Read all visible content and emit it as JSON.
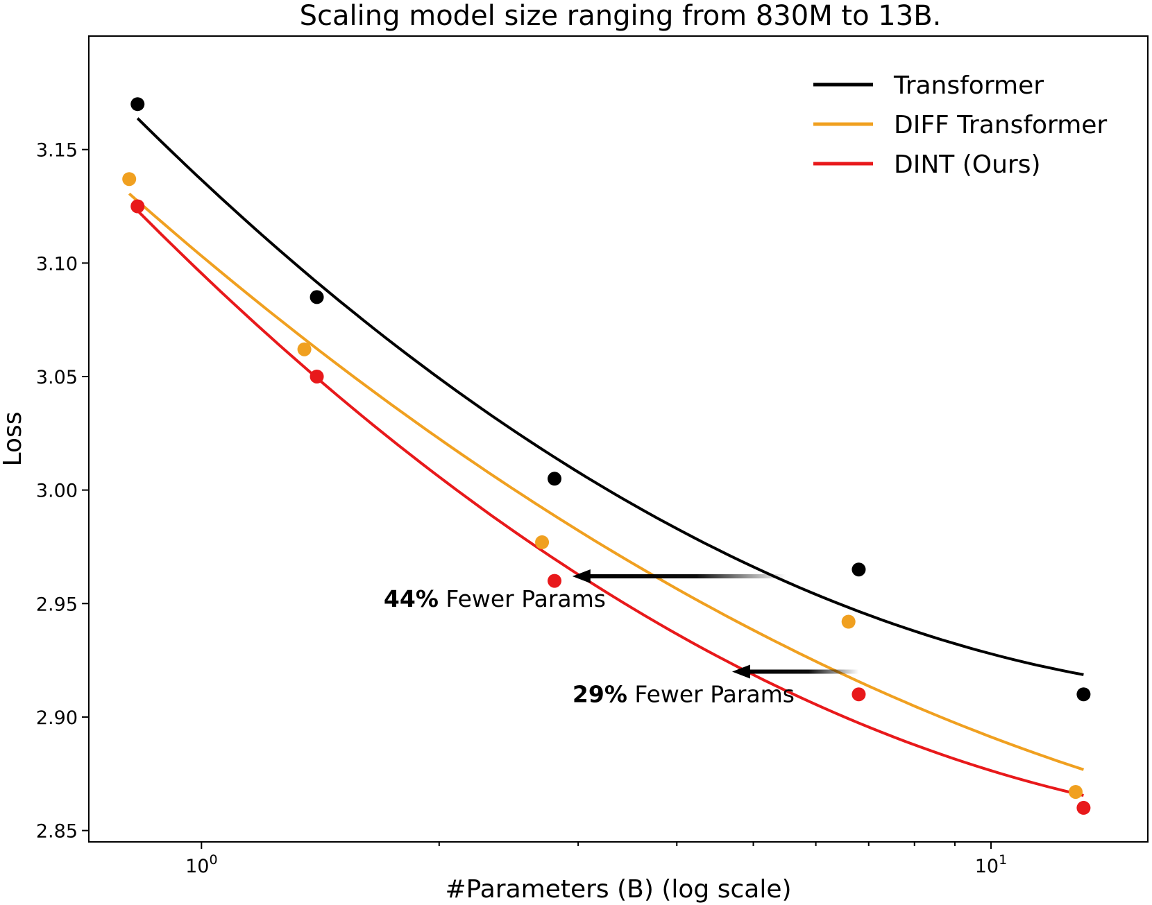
{
  "chart_data": {
    "type": "scatter",
    "title": "Scaling model size ranging from 830M to 13B.",
    "xlabel": "#Parameters (B) (log scale)",
    "ylabel": "Loss",
    "xscale": "log",
    "xlim": [
      0.72,
      15.8
    ],
    "ylim": [
      2.845,
      3.2
    ],
    "x_ticks": [
      {
        "value": 1,
        "base": "10",
        "exp": "0"
      },
      {
        "value": 10,
        "base": "10",
        "exp": "1"
      }
    ],
    "y_ticks": [
      {
        "value": 2.85,
        "label": "2.85"
      },
      {
        "value": 2.9,
        "label": "2.90"
      },
      {
        "value": 2.95,
        "label": "2.95"
      },
      {
        "value": 3.0,
        "label": "3.00"
      },
      {
        "value": 3.05,
        "label": "3.05"
      },
      {
        "value": 3.1,
        "label": "3.10"
      },
      {
        "value": 3.15,
        "label": "3.15"
      }
    ],
    "legend_position": "top-right",
    "series": [
      {
        "name": "Transformer",
        "color": "#000000",
        "points": [
          [
            0.83,
            3.17
          ],
          [
            1.4,
            3.085
          ],
          [
            2.8,
            3.005
          ],
          [
            6.8,
            2.965
          ],
          [
            13.1,
            2.91
          ]
        ],
        "fit": [
          [
            0.83,
            3.164
          ],
          [
            13.1,
            2.918
          ]
        ]
      },
      {
        "name": "DIFF Transformer",
        "color": "#f0a020",
        "points": [
          [
            0.81,
            3.137
          ],
          [
            1.35,
            3.062
          ],
          [
            2.7,
            2.977
          ],
          [
            6.6,
            2.942
          ],
          [
            12.8,
            2.867
          ]
        ],
        "fit": [
          [
            0.81,
            3.134
          ],
          [
            13.1,
            2.881
          ]
        ]
      },
      {
        "name": "DINT (Ours)",
        "color": "#e8191b",
        "points": [
          [
            0.83,
            3.125
          ],
          [
            1.4,
            3.05
          ],
          [
            2.8,
            2.96
          ],
          [
            6.8,
            2.91
          ],
          [
            13.1,
            2.86
          ]
        ],
        "fit": [
          [
            0.83,
            3.122
          ],
          [
            13.1,
            2.865
          ]
        ]
      }
    ],
    "annotations": [
      {
        "bold": "44%",
        "text": " Fewer Params",
        "arrow_from": [
          5.5,
          2.962
        ],
        "arrow_to": [
          2.95,
          2.962
        ]
      },
      {
        "bold": "29%",
        "text": " Fewer Params",
        "arrow_from": [
          6.8,
          2.92
        ],
        "arrow_to": [
          4.7,
          2.92
        ]
      }
    ]
  }
}
